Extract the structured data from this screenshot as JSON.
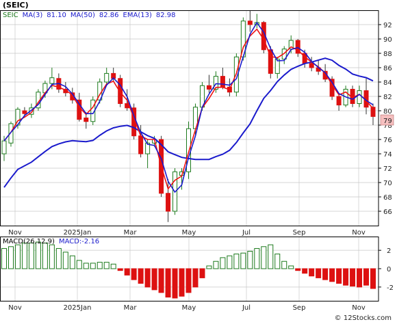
{
  "title": "(SEIC)",
  "watermark": "© 12Stocks.com",
  "colors": {
    "up": "#1c7a1c",
    "down": "#dd1111",
    "ma3": "#1a1acc",
    "ma50": "#1a1acc",
    "ema13": "#ee1111",
    "grid": "#c8c8c8",
    "frame": "#000000",
    "last_price_box": "#f6c0c0"
  },
  "price_panel": {
    "legend": [
      {
        "text": "SEIC",
        "color": "#1c7a1c"
      },
      {
        "text": "MA(3)",
        "color": "#1a1acc"
      },
      {
        "text": "81.10",
        "color": "#1a1acc"
      },
      {
        "text": "MA(50)",
        "color": "#1a1acc"
      },
      {
        "text": "82.86",
        "color": "#1a1acc"
      },
      {
        "text": "EMA(13)",
        "color": "#1a1acc"
      },
      {
        "text": "82.98",
        "color": "#1a1acc"
      }
    ],
    "last_price_label": "79",
    "y_ticks": [
      "92",
      "90",
      "88",
      "86",
      "84",
      "82",
      "80",
      "78",
      "76",
      "74",
      "72",
      "70",
      "68",
      "66"
    ]
  },
  "macd_panel": {
    "legend": [
      {
        "text": "MACD(26,12,9)",
        "color": "#000000"
      },
      {
        "text": "MACD:-2.16",
        "color": "#1a1acc"
      }
    ],
    "y_ticks": [
      "2",
      "0",
      "-2"
    ]
  },
  "x_ticks": [
    "Nov",
    "2025Jan",
    "Mar",
    "May",
    "Jul",
    "Sep",
    "Nov"
  ],
  "chart_data": {
    "type": "candlestick",
    "x_ticks": [
      "Nov",
      "2025Jan",
      "Mar",
      "May",
      "Jul",
      "Sep",
      "Nov"
    ],
    "ylim": [
      64,
      94
    ],
    "weekly_ohlc": [
      [
        74.0,
        76.5,
        73.0,
        75.8
      ],
      [
        75.5,
        78.5,
        75.0,
        78.2
      ],
      [
        78.0,
        80.5,
        77.5,
        80.2
      ],
      [
        80.0,
        80.5,
        79.2,
        79.6
      ],
      [
        79.5,
        81.0,
        79.0,
        80.4
      ],
      [
        80.4,
        83.0,
        80.0,
        82.6
      ],
      [
        82.5,
        84.2,
        81.8,
        83.8
      ],
      [
        83.8,
        86.0,
        83.0,
        84.6
      ],
      [
        84.5,
        85.2,
        82.5,
        83.0
      ],
      [
        83.0,
        84.0,
        82.0,
        82.5
      ],
      [
        82.5,
        83.2,
        81.0,
        81.5
      ],
      [
        81.5,
        82.5,
        78.5,
        78.8
      ],
      [
        79.0,
        79.8,
        77.5,
        78.5
      ],
      [
        78.5,
        82.0,
        78.0,
        81.5
      ],
      [
        81.5,
        84.5,
        81.0,
        84.0
      ],
      [
        84.0,
        86.0,
        83.5,
        85.2
      ],
      [
        85.2,
        86.0,
        84.0,
        84.5
      ],
      [
        84.5,
        85.0,
        80.5,
        81.0
      ],
      [
        81.0,
        83.0,
        80.0,
        80.4
      ],
      [
        80.4,
        81.0,
        76.0,
        76.5
      ],
      [
        76.5,
        78.0,
        73.5,
        74.0
      ],
      [
        74.0,
        76.0,
        72.0,
        75.5
      ],
      [
        75.5,
        76.5,
        75.0,
        76.0
      ],
      [
        76.0,
        76.5,
        68.0,
        68.5
      ],
      [
        68.5,
        70.5,
        64.5,
        66.0
      ],
      [
        66.0,
        72.0,
        65.5,
        71.5
      ],
      [
        71.0,
        72.0,
        69.0,
        71.5
      ],
      [
        71.5,
        78.5,
        70.5,
        77.5
      ],
      [
        77.5,
        81.0,
        76.5,
        80.5
      ],
      [
        80.5,
        84.0,
        80.0,
        83.5
      ],
      [
        83.5,
        85.0,
        82.5,
        83.0
      ],
      [
        83.0,
        85.5,
        82.5,
        84.8
      ],
      [
        84.8,
        86.0,
        83.0,
        83.3
      ],
      [
        83.3,
        84.5,
        82.0,
        82.6
      ],
      [
        82.6,
        88.0,
        82.0,
        87.5
      ],
      [
        87.5,
        93.0,
        87.0,
        92.5
      ],
      [
        92.5,
        94.0,
        91.0,
        92.0
      ],
      [
        92.0,
        93.5,
        91.5,
        92.3
      ],
      [
        92.3,
        92.5,
        88.0,
        88.5
      ],
      [
        88.5,
        89.0,
        84.5,
        85.2
      ],
      [
        85.2,
        87.5,
        84.5,
        87.2
      ],
      [
        87.2,
        89.0,
        86.5,
        88.6
      ],
      [
        88.6,
        90.5,
        88.0,
        89.8
      ],
      [
        89.8,
        90.0,
        87.5,
        88.0
      ],
      [
        88.0,
        88.5,
        86.0,
        86.6
      ],
      [
        86.6,
        87.5,
        85.5,
        86.0
      ],
      [
        86.0,
        87.0,
        85.0,
        85.5
      ],
      [
        85.5,
        86.5,
        84.0,
        84.4
      ],
      [
        84.4,
        84.8,
        81.5,
        82.0
      ],
      [
        82.0,
        82.5,
        80.0,
        80.8
      ],
      [
        80.8,
        83.5,
        80.5,
        83.0
      ],
      [
        83.0,
        83.5,
        80.5,
        81.0
      ],
      [
        81.0,
        83.5,
        80.5,
        82.8
      ],
      [
        82.8,
        84.5,
        79.5,
        80.5
      ],
      [
        80.5,
        81.0,
        78.0,
        79.2
      ]
    ],
    "series": [
      {
        "name": "MA(3)",
        "last": 81.1
      },
      {
        "name": "MA(50)",
        "last": 82.86
      },
      {
        "name": "EMA(13)",
        "last": 82.98
      },
      {
        "name": "MACD(26,12,9)",
        "last": -2.16
      }
    ],
    "macd_histogram": [
      2.2,
      2.4,
      2.6,
      2.8,
      2.8,
      2.9,
      2.8,
      2.6,
      2.2,
      1.8,
      1.4,
      0.9,
      0.6,
      0.6,
      0.7,
      0.7,
      0.5,
      -0.2,
      -0.7,
      -1.2,
      -1.6,
      -2.0,
      -2.3,
      -2.6,
      -3.1,
      -3.2,
      -3.0,
      -2.6,
      -2.0,
      -1.0,
      0.3,
      0.8,
      1.2,
      1.4,
      1.6,
      1.7,
      1.9,
      2.2,
      2.4,
      2.6,
      1.6,
      0.8,
      0.3,
      -0.2,
      -0.5,
      -0.8,
      -1.0,
      -1.2,
      -1.4,
      -1.6,
      -1.8,
      -1.9,
      -2.0,
      -1.8,
      -2.16
    ],
    "macd_ylim": [
      -3.5,
      3.5
    ]
  }
}
